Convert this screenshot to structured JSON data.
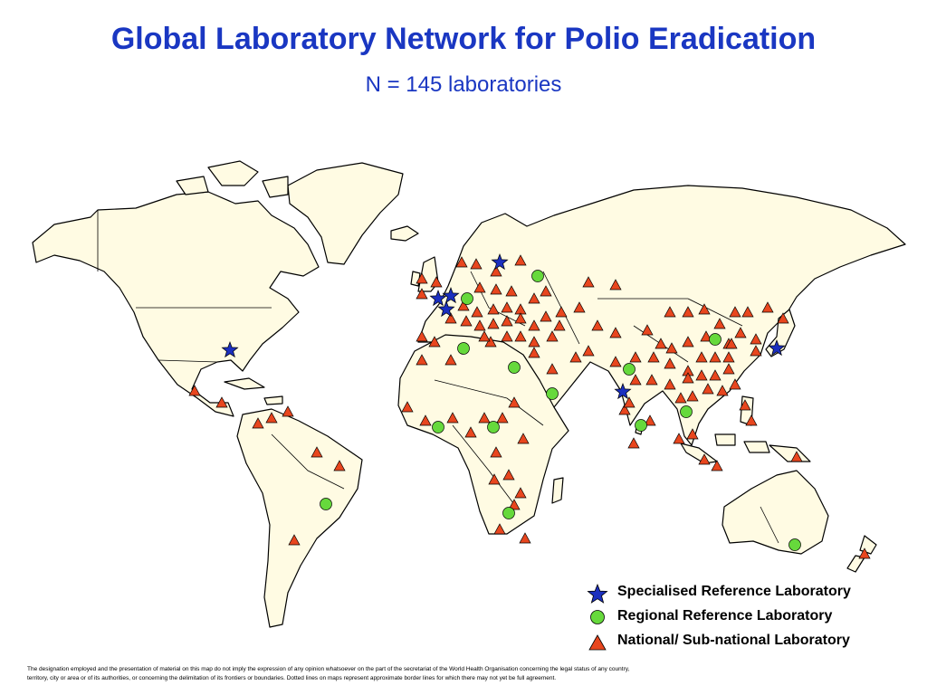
{
  "title": "Global Laboratory Network for Polio Eradication",
  "subtitle": "N = 145 laboratories",
  "colors": {
    "title": "#1a37c2",
    "land": "#fffbe3",
    "border": "#000000",
    "specialised": "#1b2fbf",
    "regional": "#66d93c",
    "national": "#e8461e"
  },
  "legend": [
    {
      "type": "specialised",
      "icon": "star-icon",
      "label": "Specialised Reference Laboratory"
    },
    {
      "type": "regional",
      "icon": "circle-icon",
      "label": "Regional Reference Laboratory"
    },
    {
      "type": "national",
      "icon": "triangle-icon",
      "label": "National/ Sub-national Laboratory"
    }
  ],
  "disclaimer": {
    "line1": "The designation employed and the presentation of material on this map do not imply the expression of any opinion whatsoever on the part of the secretariat of the World Health Organisation concerning the legal status of any country,",
    "line2": "territory, city or area or of its authorities, or concerning the delimitation of its frontiers or boundaries. Dotted lines on maps represent approximate border lines for which there may not yet be full agreement."
  }
}
